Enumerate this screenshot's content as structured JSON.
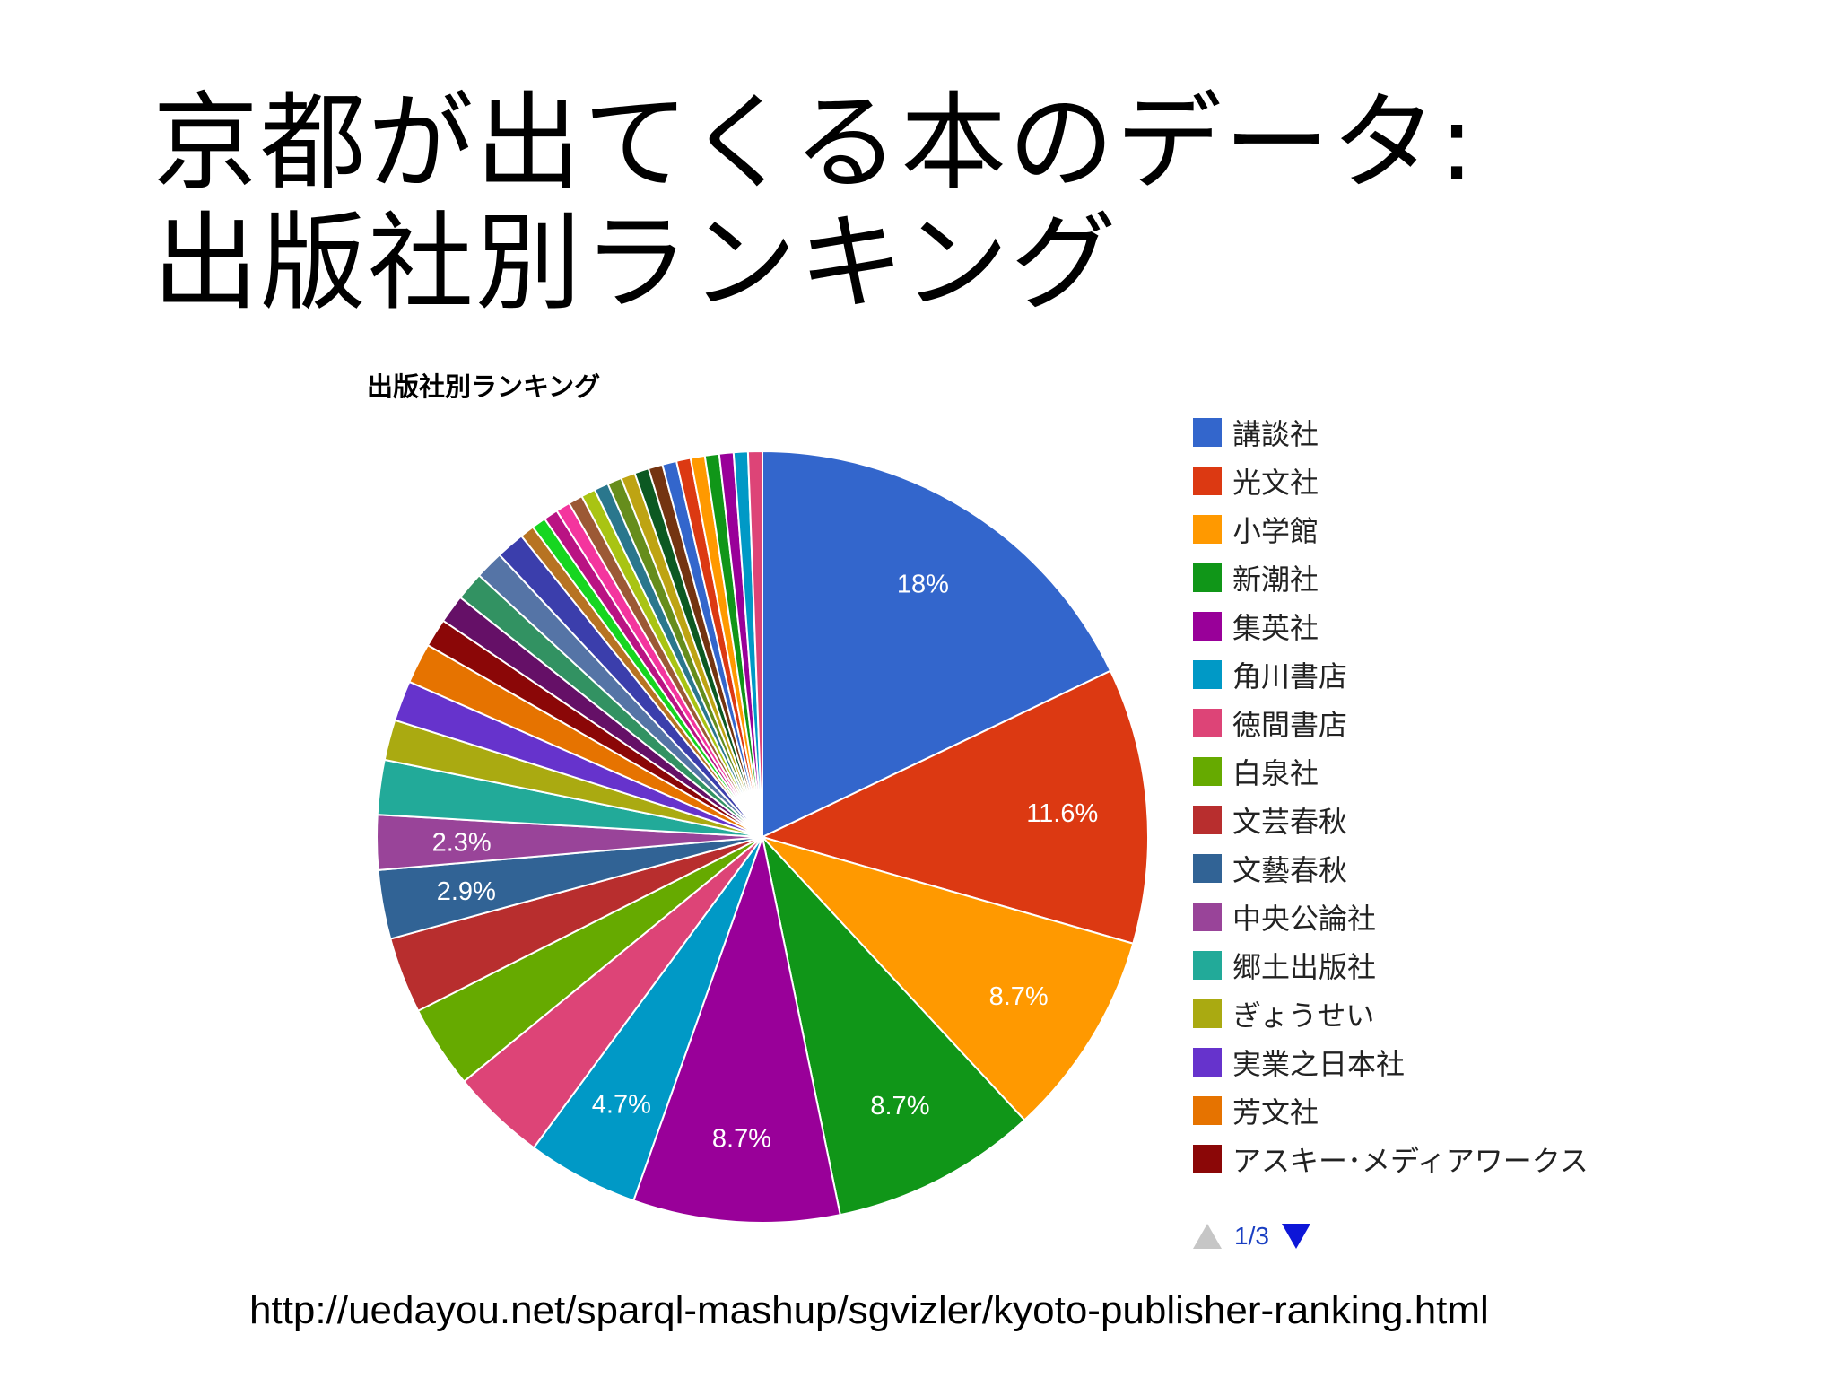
{
  "slide": {
    "title_line1": "京都が出てくる本のデータ:",
    "title_line2": "出版社別ランキング",
    "url": "http://uedayou.net/sparql-mashup/sgvizler/kyoto-publisher-ranking.html"
  },
  "pager": {
    "page_label": "1/3",
    "up_icon": "triangle-up-icon",
    "down_icon": "triangle-down-icon"
  },
  "chart_data": {
    "type": "pie",
    "title": "出版社別ランキング",
    "legend_position": "right",
    "slices": [
      {
        "label": "講談社",
        "value": 18,
        "color": "#3366cc",
        "data_label": "18%"
      },
      {
        "label": "光文社",
        "value": 11.6,
        "color": "#dc3912",
        "data_label": "11.6%"
      },
      {
        "label": "小学館",
        "value": 8.7,
        "color": "#ff9900",
        "data_label": "8.7%"
      },
      {
        "label": "新潮社",
        "value": 8.7,
        "color": "#109618",
        "data_label": "8.7%"
      },
      {
        "label": "集英社",
        "value": 8.7,
        "color": "#990099",
        "data_label": "8.7%"
      },
      {
        "label": "角川書店",
        "value": 4.7,
        "color": "#0099c6",
        "data_label": "4.7%"
      },
      {
        "label": "徳間書店",
        "value": 4.0,
        "color": "#dd4477",
        "data_label": ""
      },
      {
        "label": "白泉社",
        "value": 3.5,
        "color": "#66aa00",
        "data_label": ""
      },
      {
        "label": "文芸春秋",
        "value": 3.2,
        "color": "#b82e2e",
        "data_label": ""
      },
      {
        "label": "文藝春秋",
        "value": 2.9,
        "color": "#316395",
        "data_label": "2.9%"
      },
      {
        "label": "中央公論社",
        "value": 2.3,
        "color": "#994499",
        "data_label": "2.3%"
      },
      {
        "label": "郷土出版社",
        "value": 2.3,
        "color": "#22aa99",
        "data_label": ""
      },
      {
        "label": "ぎょうせい",
        "value": 1.7,
        "color": "#aaaa11",
        "data_label": ""
      },
      {
        "label": "実業之日本社",
        "value": 1.7,
        "color": "#6633cc",
        "data_label": ""
      },
      {
        "label": "芳文社",
        "value": 1.7,
        "color": "#e67300",
        "data_label": ""
      },
      {
        "label": "アスキー･メディアワークス",
        "value": 1.2,
        "color": "#8b0707",
        "data_label": ""
      },
      {
        "label": "",
        "value": 1.2,
        "color": "#651067",
        "data_label": ""
      },
      {
        "label": "",
        "value": 1.2,
        "color": "#329262",
        "data_label": ""
      },
      {
        "label": "",
        "value": 1.2,
        "color": "#5574a6",
        "data_label": ""
      },
      {
        "label": "",
        "value": 1.2,
        "color": "#3b3eac",
        "data_label": ""
      },
      {
        "label": "",
        "value": 0.6,
        "color": "#b77322",
        "data_label": ""
      },
      {
        "label": "",
        "value": 0.6,
        "color": "#16d620",
        "data_label": ""
      },
      {
        "label": "",
        "value": 0.6,
        "color": "#b91383",
        "data_label": ""
      },
      {
        "label": "",
        "value": 0.6,
        "color": "#f4359e",
        "data_label": ""
      },
      {
        "label": "",
        "value": 0.6,
        "color": "#9c5935",
        "data_label": ""
      },
      {
        "label": "",
        "value": 0.6,
        "color": "#a9c413",
        "data_label": ""
      },
      {
        "label": "",
        "value": 0.6,
        "color": "#2a778d",
        "data_label": ""
      },
      {
        "label": "",
        "value": 0.6,
        "color": "#668d1c",
        "data_label": ""
      },
      {
        "label": "",
        "value": 0.6,
        "color": "#bea413",
        "data_label": ""
      },
      {
        "label": "",
        "value": 0.6,
        "color": "#0c5922",
        "data_label": ""
      },
      {
        "label": "",
        "value": 0.6,
        "color": "#743411",
        "data_label": ""
      },
      {
        "label": "",
        "value": 0.6,
        "color": "#3366cc",
        "data_label": ""
      },
      {
        "label": "",
        "value": 0.6,
        "color": "#dc3912",
        "data_label": ""
      },
      {
        "label": "",
        "value": 0.6,
        "color": "#ff9900",
        "data_label": ""
      },
      {
        "label": "",
        "value": 0.6,
        "color": "#109618",
        "data_label": ""
      },
      {
        "label": "",
        "value": 0.6,
        "color": "#990099",
        "data_label": ""
      },
      {
        "label": "",
        "value": 0.6,
        "color": "#0099c6",
        "data_label": ""
      },
      {
        "label": "",
        "value": 0.6,
        "color": "#dd4477",
        "data_label": ""
      }
    ]
  }
}
